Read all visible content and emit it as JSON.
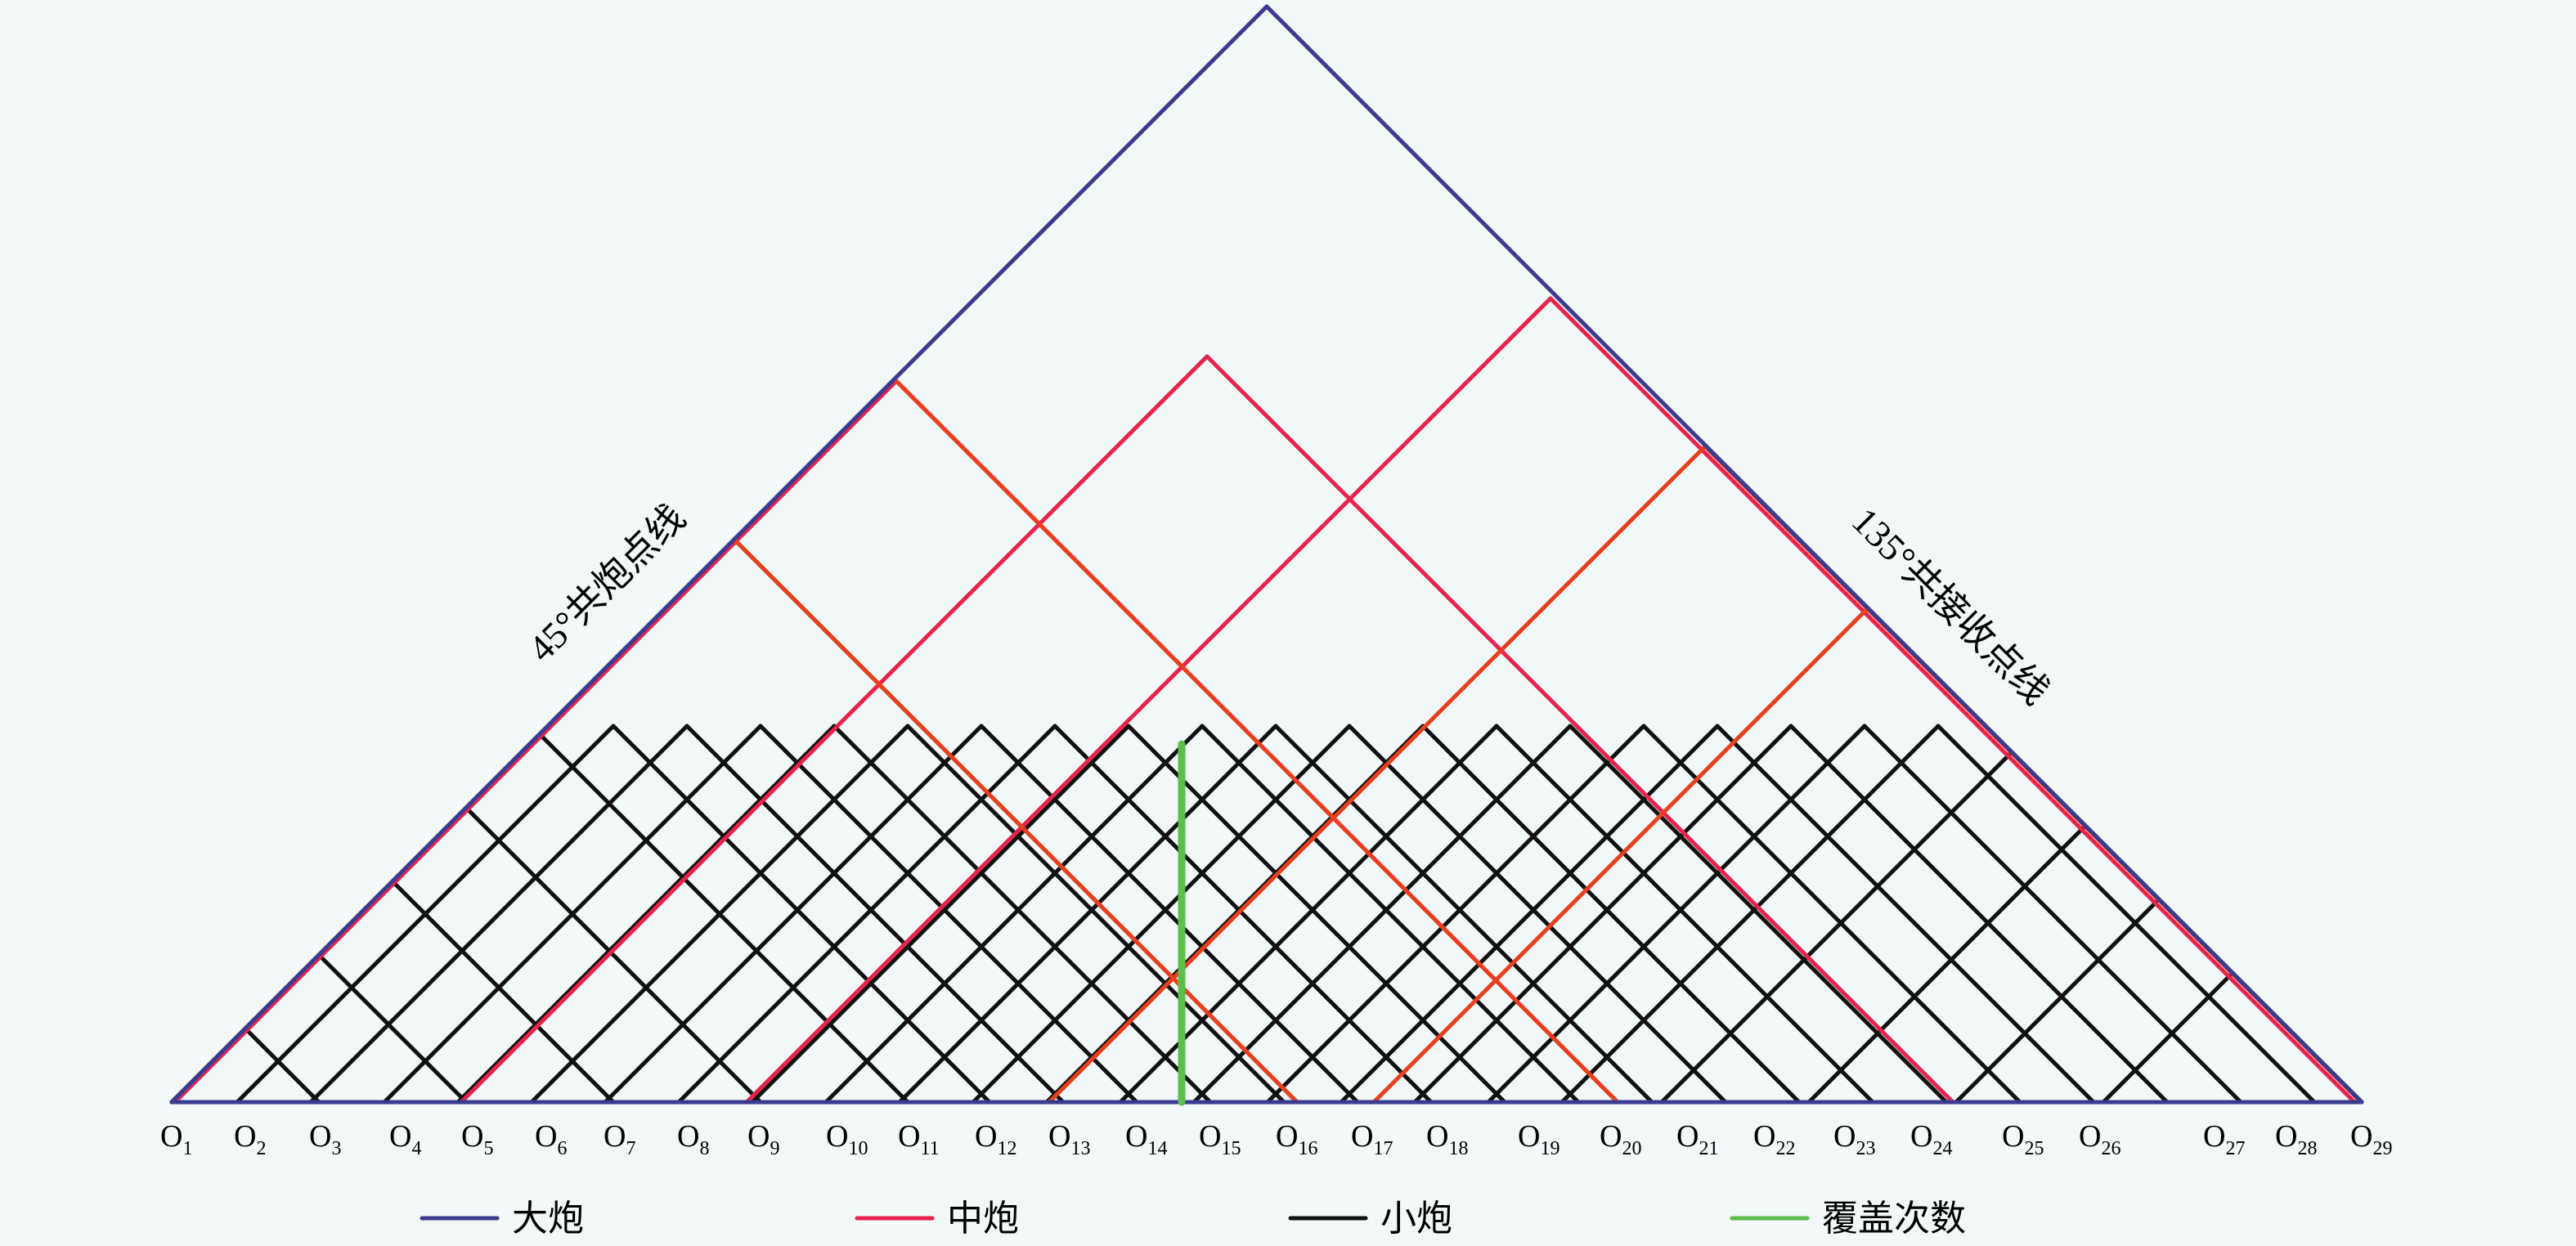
{
  "left_edge_label": "45°共炮点线",
  "right_edge_label": "135°共接收点线",
  "stations": {
    "prefix": "O",
    "labels": [
      "1",
      "2",
      "3",
      "4",
      "5",
      "6",
      "7",
      "8",
      "9",
      "10",
      "11",
      "12",
      "13",
      "14",
      "15",
      "16",
      "17",
      "18",
      "19",
      "20",
      "21",
      "22",
      "23",
      "24",
      "25",
      "26",
      "27",
      "28",
      "29"
    ]
  },
  "legend": [
    {
      "label": "大炮",
      "color": "#3b3b8f"
    },
    {
      "label": "中炮",
      "color": "#e8224e"
    },
    {
      "label": "小炮",
      "color": "#111111"
    },
    {
      "label": "覆盖次数",
      "color": "#5cbf4a"
    }
  ],
  "colors": {
    "large_shot": "#3b3b8f",
    "medium_shot": "#e8224e",
    "medium_shot_alt": "#e8401e",
    "small_shot": "#111111",
    "coverage": "#5cbf4a",
    "background": "#f2f7f8"
  }
}
